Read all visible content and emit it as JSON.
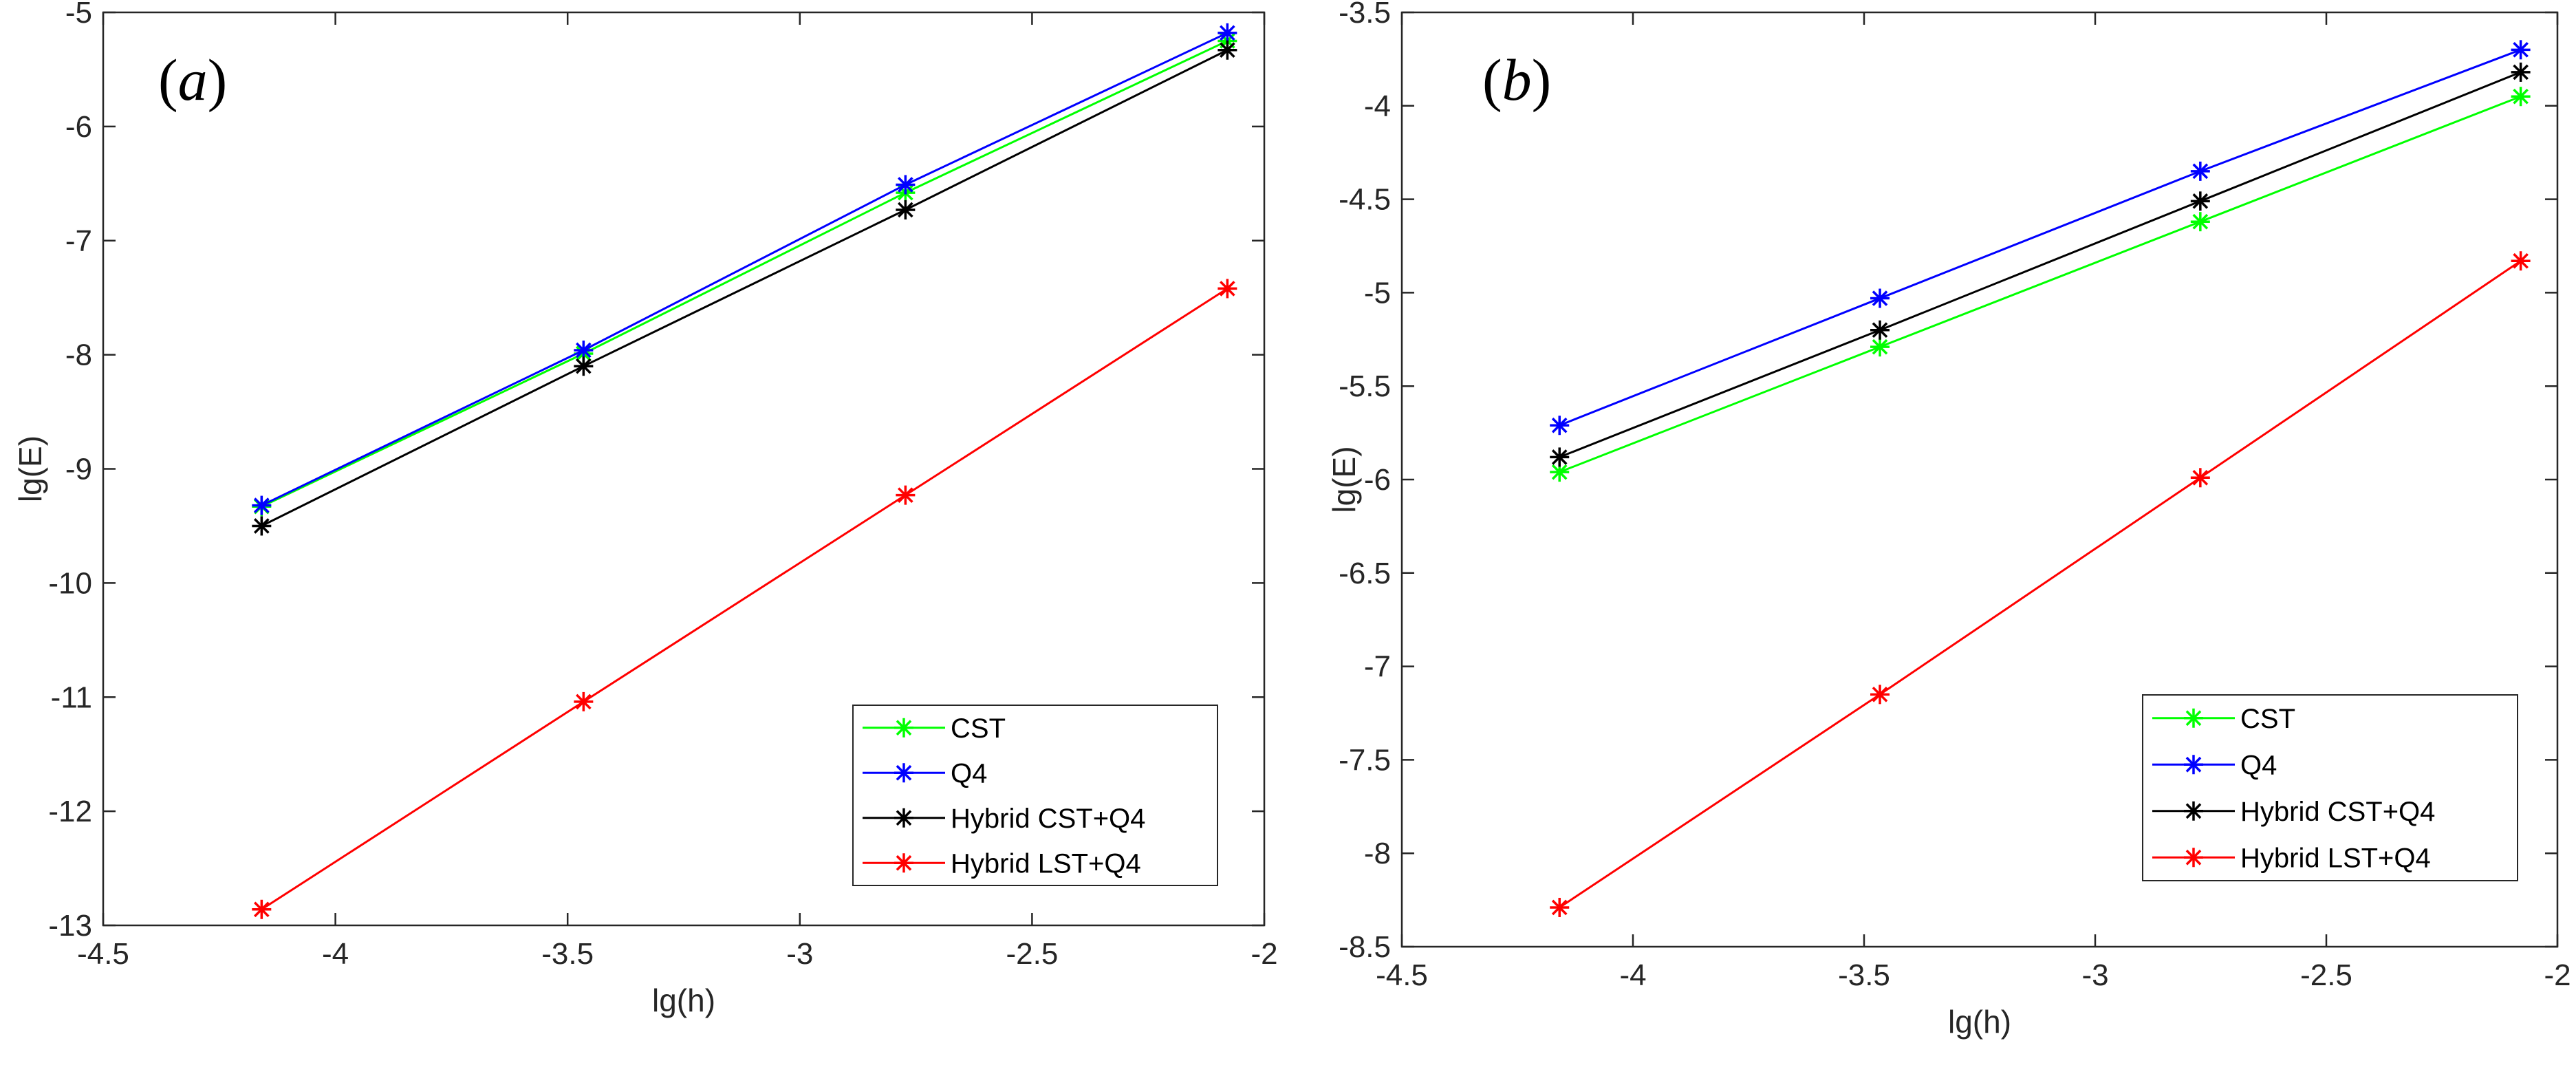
{
  "chart_data": [
    {
      "type": "line",
      "panel_label": "(a)",
      "xlabel": "lg(h)",
      "ylabel": "lg(E)",
      "xlim": [
        -4.5,
        -2
      ],
      "ylim": [
        -13,
        -5
      ],
      "xticks": [
        -4.5,
        -4,
        -3.5,
        -3,
        -2.5,
        -2
      ],
      "yticks": [
        -13,
        -12,
        -11,
        -10,
        -9,
        -8,
        -7,
        -6,
        -5
      ],
      "x": [
        -4.158883,
        -3.465736,
        -2.772589,
        -2.079442
      ],
      "series": [
        {
          "name": "CST",
          "color": "#00ff00",
          "values": [
            -9.33,
            -7.99,
            -6.58,
            -5.25
          ]
        },
        {
          "name": "Q4",
          "color": "#0000ff",
          "values": [
            -9.32,
            -7.96,
            -6.51,
            -5.18
          ]
        },
        {
          "name": "Hybrid CST+Q4",
          "color": "#000000",
          "values": [
            -9.5,
            -8.1,
            -6.73,
            -5.33
          ]
        },
        {
          "name": "Hybrid LST+Q4",
          "color": "#ff0000",
          "values": [
            -12.86,
            -11.04,
            -9.23,
            -7.42
          ]
        }
      ],
      "legend_position": "bottom-right"
    },
    {
      "type": "line",
      "panel_label": "(b)",
      "xlabel": "lg(h)",
      "ylabel": "lg(E)",
      "xlim": [
        -4.5,
        -2
      ],
      "ylim": [
        -8.5,
        -3.5
      ],
      "xticks": [
        -4.5,
        -4,
        -3.5,
        -3,
        -2.5,
        -2
      ],
      "yticks": [
        -8.5,
        -8,
        -7.5,
        -7,
        -6.5,
        -6,
        -5.5,
        -5,
        -4.5,
        -4,
        -3.5
      ],
      "x": [
        -4.158883,
        -3.465736,
        -2.772589,
        -2.079442
      ],
      "series": [
        {
          "name": "CST",
          "color": "#00ff00",
          "values": [
            -5.96,
            -5.29,
            -4.62,
            -3.95
          ]
        },
        {
          "name": "Q4",
          "color": "#0000ff",
          "values": [
            -5.71,
            -5.03,
            -4.35,
            -3.7
          ]
        },
        {
          "name": "Hybrid CST+Q4",
          "color": "#000000",
          "values": [
            -5.88,
            -5.2,
            -4.51,
            -3.82
          ]
        },
        {
          "name": "Hybrid LST+Q4",
          "color": "#ff0000",
          "values": [
            -8.29,
            -7.15,
            -5.99,
            -4.83
          ]
        }
      ],
      "legend_position": "bottom-right"
    }
  ]
}
